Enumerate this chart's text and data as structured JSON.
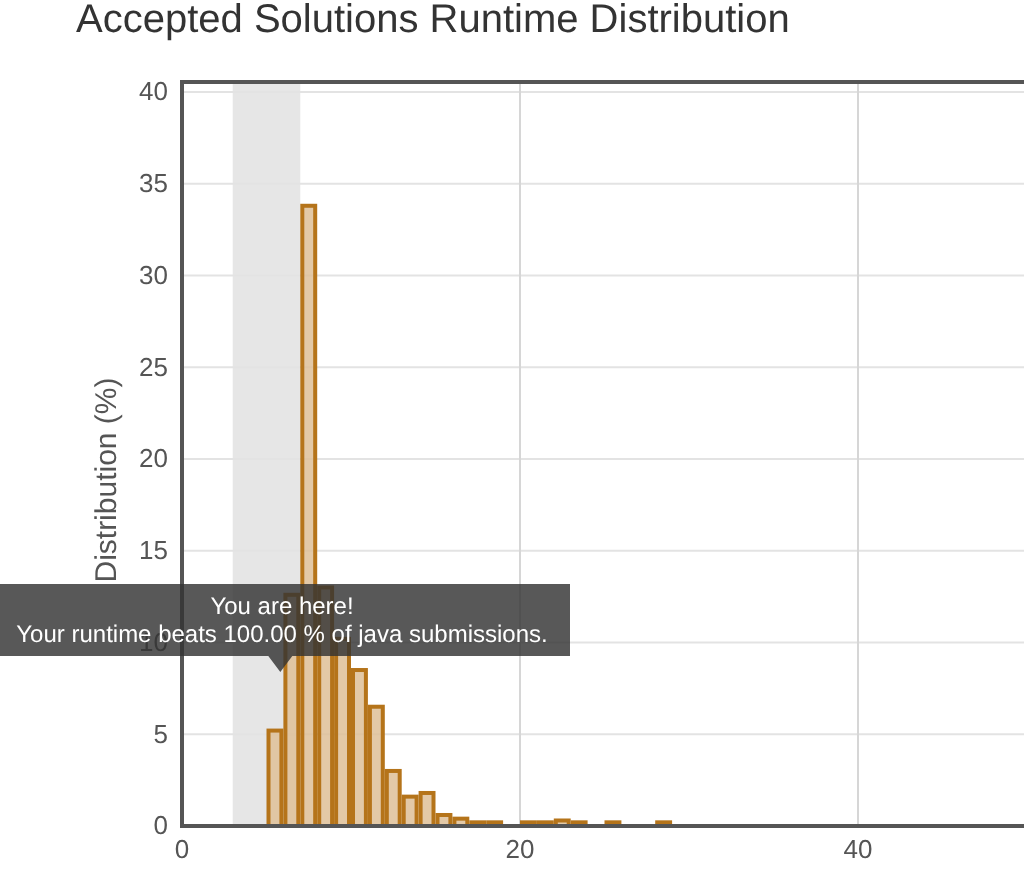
{
  "chart_data": {
    "type": "histogram",
    "title": "Accepted Solutions Runtime Distribution",
    "ylabel": "Distribution (%)",
    "bins": [
      5,
      6,
      7,
      8,
      9,
      10,
      11,
      12,
      13,
      14,
      15,
      16,
      17,
      18,
      19,
      20,
      21,
      22,
      23,
      24,
      25,
      26,
      27,
      28,
      29
    ],
    "values": [
      5.2,
      12.6,
      33.8,
      13.0,
      10.2,
      8.5,
      6.5,
      3.0,
      1.6,
      1.8,
      0.6,
      0.4,
      0.2,
      0.2,
      0,
      0.2,
      0.2,
      0.3,
      0.2,
      0,
      0.2,
      0,
      0,
      0.2
    ],
    "color": "#b5741a",
    "xlim": [
      0,
      50
    ],
    "xticks": [
      0,
      20,
      40
    ],
    "ylim": [
      0,
      40
    ],
    "yticks": [
      0,
      5,
      10,
      15,
      20,
      25,
      30,
      35,
      40
    ],
    "grid": true,
    "bands": [
      {
        "axis": "x",
        "from": 3,
        "to": 7,
        "color": "#e6e6e6"
      }
    ],
    "annotations": [
      "You are here!",
      "Your runtime beats 100.00 % of java submissions."
    ]
  }
}
